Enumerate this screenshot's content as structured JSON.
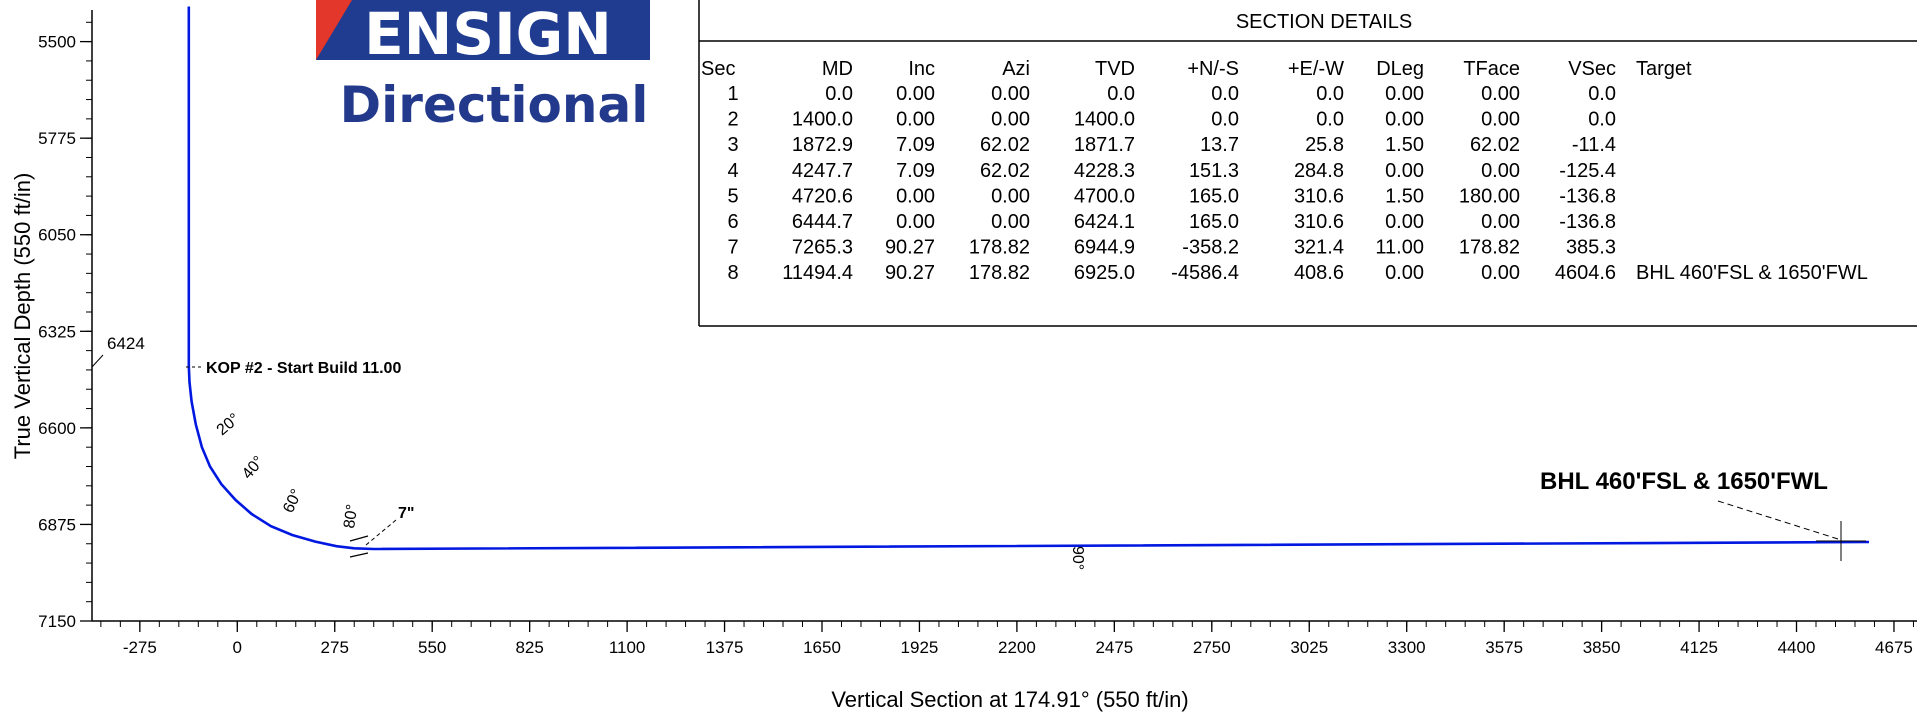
{
  "chart_data": {
    "type": "line",
    "xlabel": "Vertical Section at 174.91° (550 ft/in)",
    "ylabel": "True Vertical Depth (550 ft/in)",
    "xlim": [
      -410,
      4740
    ],
    "ylim": [
      7150,
      5410
    ],
    "x_ticks": [
      -275,
      0,
      275,
      550,
      825,
      1100,
      1375,
      1650,
      1925,
      2200,
      2475,
      2750,
      3025,
      3300,
      3575,
      3850,
      4125,
      4400,
      4675
    ],
    "y_ticks": [
      5500,
      5775,
      6050,
      6325,
      6600,
      6875,
      7150
    ],
    "series": [
      {
        "x": [
          -136.8,
          -136.8,
          -135.0,
          -129.0,
          -117.0,
          -100.0,
          -77.0,
          -45.0,
          -5.0,
          40.0,
          95.0,
          155.0,
          220.0,
          280.0,
          330.0,
          385.3,
          4604.6
        ],
        "y": [
          5400,
          6424.1,
          6470,
          6525,
          6590,
          6655,
          6710,
          6760,
          6805,
          6845,
          6880,
          6905,
          6924,
          6937,
          6943,
          6944.9,
          6925.0
        ]
      }
    ],
    "annotations": {
      "kop": "KOP #2 - Start Build 11.00",
      "depth_marker": "6424",
      "casing": "7\"",
      "bhl": "BHL 460'FSL & 1650'FWL",
      "angles": [
        "20°",
        "40°",
        "60°",
        "80°",
        "90°"
      ]
    }
  },
  "logo": {
    "line1": "ENSIGN",
    "line2": "Directional"
  },
  "section_table": {
    "title": "SECTION DETAILS",
    "headers": [
      "Sec",
      "MD",
      "Inc",
      "Azi",
      "TVD",
      "+N/-S",
      "+E/-W",
      "DLeg",
      "TFace",
      "VSec",
      "Target"
    ],
    "rows": [
      [
        "1",
        "0.0",
        "0.00",
        "0.00",
        "0.0",
        "0.0",
        "0.0",
        "0.00",
        "0.00",
        "0.0",
        ""
      ],
      [
        "2",
        "1400.0",
        "0.00",
        "0.00",
        "1400.0",
        "0.0",
        "0.0",
        "0.00",
        "0.00",
        "0.0",
        ""
      ],
      [
        "3",
        "1872.9",
        "7.09",
        "62.02",
        "1871.7",
        "13.7",
        "25.8",
        "1.50",
        "62.02",
        "-11.4",
        ""
      ],
      [
        "4",
        "4247.7",
        "7.09",
        "62.02",
        "4228.3",
        "151.3",
        "284.8",
        "0.00",
        "0.00",
        "-125.4",
        ""
      ],
      [
        "5",
        "4720.6",
        "0.00",
        "0.00",
        "4700.0",
        "165.0",
        "310.6",
        "1.50",
        "180.00",
        "-136.8",
        ""
      ],
      [
        "6",
        "6444.7",
        "0.00",
        "0.00",
        "6424.1",
        "165.0",
        "310.6",
        "0.00",
        "0.00",
        "-136.8",
        ""
      ],
      [
        "7",
        "7265.3",
        "90.27",
        "178.82",
        "6944.9",
        "-358.2",
        "321.4",
        "11.00",
        "178.82",
        "385.3",
        ""
      ],
      [
        "8",
        "11494.4",
        "90.27",
        "178.82",
        "6925.0",
        "-4586.4",
        "408.6",
        "0.00",
        "0.00",
        "4604.6",
        "BHL 460'FSL & 1650'FWL"
      ]
    ]
  }
}
